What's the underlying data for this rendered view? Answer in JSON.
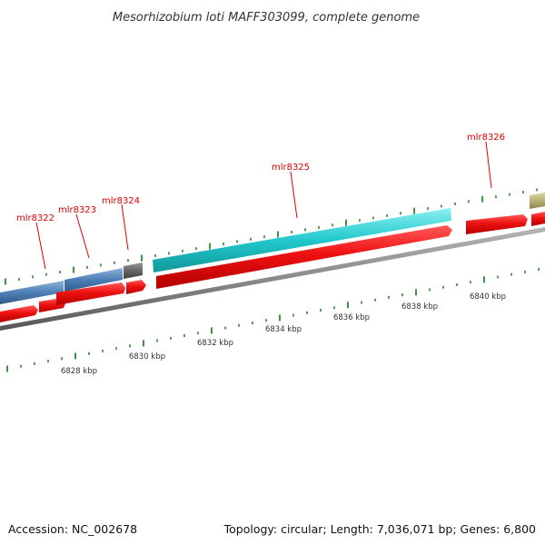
{
  "title": "Mesorhizobium loti MAFF303099, complete genome",
  "accession_text": "Accession: NC_002678",
  "summary_text": "Topology: circular; Length: 7,036,071 bp; Genes: 6,800",
  "colors": {
    "cds_red": "#ee1111",
    "gene_steelblue": "#4d7fb5",
    "gene_gray": "#666666",
    "gene_cyan": "#22c8cc",
    "gene_khaki": "#b9b277",
    "backbone": "#888888",
    "tick_green": "#117711",
    "gene_label_red": "#dd0000"
  },
  "gene_labels": [
    {
      "id": "mlr8322"
    },
    {
      "id": "mlr8323"
    },
    {
      "id": "mlr8324"
    },
    {
      "id": "mlr8325"
    },
    {
      "id": "mlr8326"
    }
  ],
  "scale_labels": [
    {
      "text": "6828 kbp"
    },
    {
      "text": "6830 kbp"
    },
    {
      "text": "6832 kbp"
    },
    {
      "text": "6834 kbp"
    },
    {
      "text": "6836 kbp"
    },
    {
      "text": "6838 kbp"
    },
    {
      "text": "6840 kbp"
    }
  ]
}
